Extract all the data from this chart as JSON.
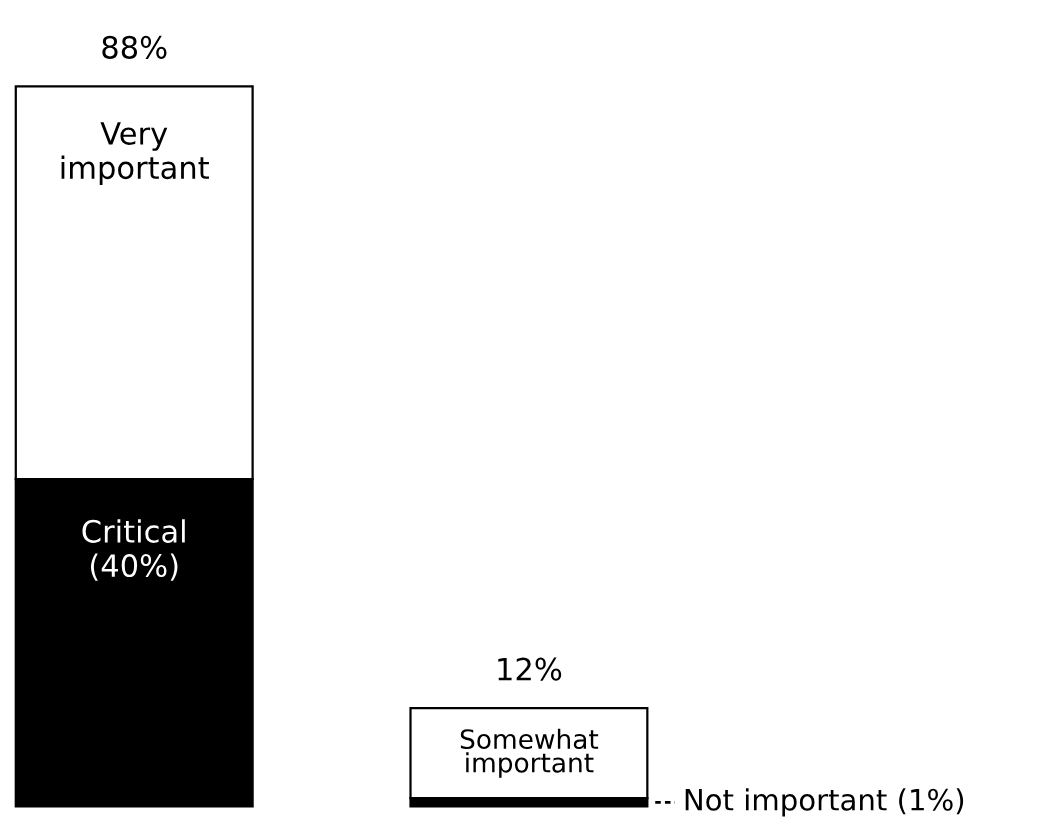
{
  "chart_data": {
    "type": "bar",
    "stacked": true,
    "categories": [
      null,
      null
    ],
    "series": [
      {
        "name": "Critical",
        "color": "#000000",
        "values": [
          40,
          null
        ],
        "value_labels": [
          "(40%)",
          null
        ]
      },
      {
        "name": "Very important",
        "color": "#ffffff",
        "values": [
          48,
          null
        ]
      },
      {
        "name": "Not important",
        "color": "#000000",
        "values": [
          null,
          1
        ],
        "value_labels": [
          null,
          "(1%)"
        ]
      },
      {
        "name": "Somewhat important",
        "color": "#ffffff",
        "values": [
          null,
          11
        ]
      }
    ],
    "totals": [
      "88%",
      "12%"
    ],
    "legend": false
  }
}
